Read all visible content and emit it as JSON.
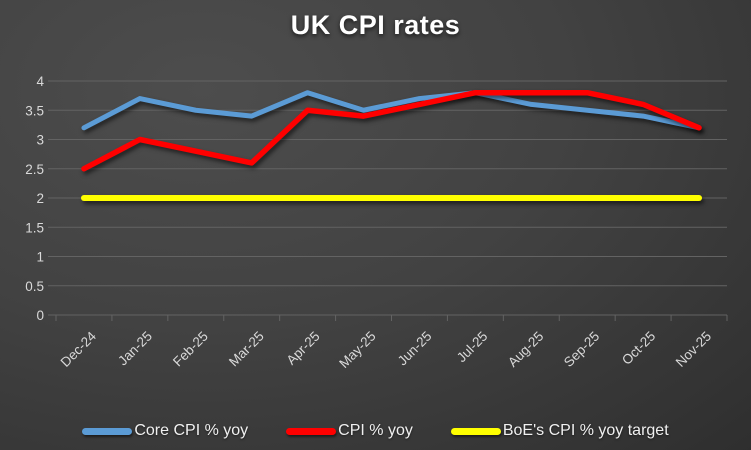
{
  "chart_data": {
    "type": "line",
    "title": "UK CPI rates",
    "categories": [
      "Dec-24",
      "Jan-25",
      "Feb-25",
      "Mar-25",
      "Apr-25",
      "May-25",
      "Jun-25",
      "Jul-25",
      "Aug-25",
      "Sep-25",
      "Oct-25",
      "Nov-25"
    ],
    "series": [
      {
        "name": "Core CPI % yoy",
        "color": "#5B9BD5",
        "values": [
          3.2,
          3.7,
          3.5,
          3.4,
          3.8,
          3.5,
          3.7,
          3.8,
          3.6,
          3.5,
          3.4,
          3.2
        ]
      },
      {
        "name": "CPI % yoy",
        "color": "#FF0000",
        "values": [
          2.5,
          3.0,
          2.8,
          2.6,
          3.5,
          3.4,
          3.6,
          3.8,
          3.8,
          3.8,
          3.6,
          3.2
        ]
      },
      {
        "name": "BoE's CPI % yoy target",
        "color": "#FFFF00",
        "values": [
          2,
          2,
          2,
          2,
          2,
          2,
          2,
          2,
          2,
          2,
          2,
          2
        ]
      }
    ],
    "ylim": [
      0,
      4
    ],
    "y_ticks": [
      "0",
      "0.5",
      "1",
      "1.5",
      "2",
      "2.5",
      "3",
      "3.5",
      "4"
    ],
    "grid": true,
    "legend_position": "bottom",
    "colors": {
      "grid": "#636363",
      "axis_text": "#d9d9d9",
      "title_text": "#ffffff",
      "legend_text": "#f0f0f0"
    }
  }
}
